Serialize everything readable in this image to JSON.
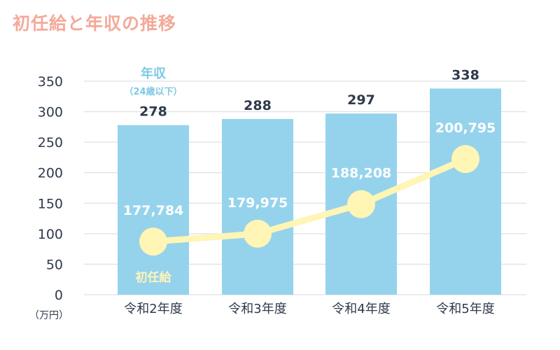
{
  "title": "初任給と年収の推移",
  "chart_data": {
    "type": "bar",
    "categories": [
      "令和2年度",
      "令和3年度",
      "令和4年度",
      "令和5年度"
    ],
    "y_unit": "（万円）",
    "ylim": [
      0,
      350
    ],
    "yticks": [
      0,
      50,
      100,
      150,
      200,
      250,
      300,
      350
    ],
    "grid": true,
    "series": [
      {
        "name": "年収",
        "name_sub": "（24歳以下）",
        "type": "bar",
        "values": [
          278,
          288,
          297,
          338
        ],
        "labels": [
          "278",
          "288",
          "297",
          "338"
        ],
        "color": "#95d3ec"
      },
      {
        "name": "初任給",
        "type": "line",
        "values": [
          177784,
          179975,
          188208,
          200795
        ],
        "labels": [
          "177,784",
          "179,975",
          "188,208",
          "200,795"
        ],
        "color": "#fff5b5"
      }
    ]
  },
  "colors": {
    "title": "#f4a99a",
    "bar": "#95d3ec",
    "line": "#fff5b5",
    "grid": "#d6d9de",
    "text": "#2f3a4c"
  }
}
